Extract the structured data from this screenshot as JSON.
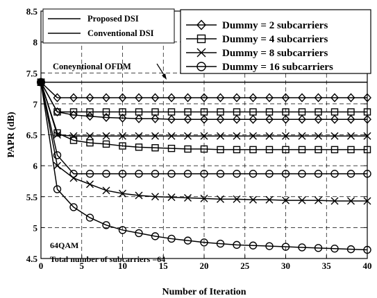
{
  "chart_data": {
    "type": "line",
    "title": "",
    "xlabel": "Number of Iteration",
    "ylabel": "PAPR (dB)",
    "xlim": [
      0,
      40
    ],
    "ylim": [
      4.5,
      8.5
    ],
    "xticks": [
      0,
      5,
      10,
      15,
      20,
      25,
      30,
      35,
      40
    ],
    "yticks": [
      4.5,
      5,
      5.5,
      6,
      6.5,
      7,
      7.5,
      8,
      8.5
    ],
    "grid": true,
    "x": [
      0,
      2,
      4,
      6,
      8,
      10,
      12,
      14,
      16,
      18,
      20,
      22,
      24,
      26,
      28,
      30,
      32,
      34,
      36,
      38,
      40
    ],
    "series": [
      {
        "name": "Dummy = 2 subcarriers",
        "scheme": "proposed",
        "marker": "diamond",
        "values": [
          7.35,
          7.1,
          7.1,
          7.1,
          7.1,
          7.1,
          7.1,
          7.1,
          7.1,
          7.1,
          7.1,
          7.1,
          7.1,
          7.1,
          7.1,
          7.1,
          7.1,
          7.1,
          7.1,
          7.1,
          7.1
        ]
      },
      {
        "name": "Dummy = 4 subcarriers",
        "scheme": "proposed",
        "marker": "square",
        "values": [
          7.35,
          6.87,
          6.87,
          6.87,
          6.87,
          6.87,
          6.87,
          6.87,
          6.87,
          6.87,
          6.87,
          6.87,
          6.87,
          6.87,
          6.87,
          6.87,
          6.87,
          6.87,
          6.87,
          6.87,
          6.87
        ]
      },
      {
        "name": "Dummy = 8 subcarriers",
        "scheme": "proposed",
        "marker": "x",
        "values": [
          7.35,
          6.5,
          6.48,
          6.48,
          6.48,
          6.48,
          6.48,
          6.48,
          6.48,
          6.48,
          6.48,
          6.48,
          6.48,
          6.48,
          6.48,
          6.48,
          6.48,
          6.48,
          6.48,
          6.48,
          6.48
        ]
      },
      {
        "name": "Dummy = 16 subcarriers",
        "scheme": "proposed",
        "marker": "circle",
        "values": [
          7.35,
          6.17,
          5.87,
          5.87,
          5.87,
          5.87,
          5.87,
          5.87,
          5.87,
          5.87,
          5.87,
          5.87,
          5.87,
          5.87,
          5.87,
          5.87,
          5.87,
          5.87,
          5.87,
          5.87,
          5.87
        ]
      },
      {
        "name": "Dummy = 2 subcarriers",
        "scheme": "conventional",
        "marker": "diamond",
        "values": [
          7.35,
          6.87,
          6.82,
          6.8,
          6.78,
          6.77,
          6.76,
          6.76,
          6.75,
          6.75,
          6.75,
          6.75,
          6.75,
          6.75,
          6.75,
          6.75,
          6.75,
          6.75,
          6.75,
          6.75,
          6.75
        ]
      },
      {
        "name": "Dummy = 4 subcarriers",
        "scheme": "conventional",
        "marker": "square",
        "values": [
          7.35,
          6.53,
          6.41,
          6.37,
          6.35,
          6.32,
          6.3,
          6.29,
          6.28,
          6.27,
          6.27,
          6.26,
          6.26,
          6.26,
          6.26,
          6.26,
          6.26,
          6.26,
          6.26,
          6.26,
          6.26
        ]
      },
      {
        "name": "Dummy = 8 subcarriers",
        "scheme": "conventional",
        "marker": "x",
        "values": [
          7.35,
          6.0,
          5.8,
          5.7,
          5.6,
          5.55,
          5.52,
          5.5,
          5.49,
          5.48,
          5.47,
          5.46,
          5.46,
          5.45,
          5.45,
          5.44,
          5.44,
          5.44,
          5.43,
          5.43,
          5.43
        ]
      },
      {
        "name": "Dummy = 16 subcarriers",
        "scheme": "conventional",
        "marker": "circle",
        "values": [
          7.35,
          5.62,
          5.33,
          5.16,
          5.04,
          4.96,
          4.91,
          4.86,
          4.82,
          4.79,
          4.76,
          4.74,
          4.72,
          4.71,
          4.7,
          4.69,
          4.68,
          4.67,
          4.66,
          4.65,
          4.64
        ]
      }
    ],
    "reference": {
      "name": "Coneyntional OFDM",
      "value": 7.35
    },
    "line_legend": [
      "Proposed DSI",
      "Conventional DSI"
    ],
    "annotations": [
      "64QAM",
      "Total number of subcarriers =64"
    ],
    "legend_position": "top-right"
  }
}
